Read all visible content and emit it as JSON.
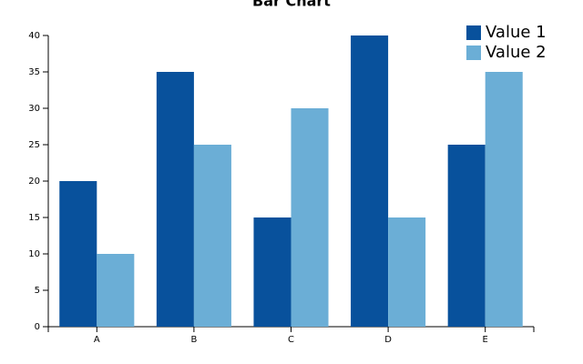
{
  "chart_data": {
    "type": "bar",
    "title": "Bar Chart",
    "categories": [
      "A",
      "B",
      "C",
      "D",
      "E"
    ],
    "series": [
      {
        "name": "Value 1",
        "color": "#08519c",
        "values": [
          20,
          35,
          15,
          40,
          25
        ]
      },
      {
        "name": "Value 2",
        "color": "#6baed6",
        "values": [
          10,
          25,
          30,
          15,
          35
        ]
      }
    ],
    "ylim": [
      0,
      40
    ],
    "yticks": [
      0,
      5,
      10,
      15,
      20,
      25,
      30,
      35,
      40
    ],
    "grid": false,
    "legend": "top-right"
  }
}
